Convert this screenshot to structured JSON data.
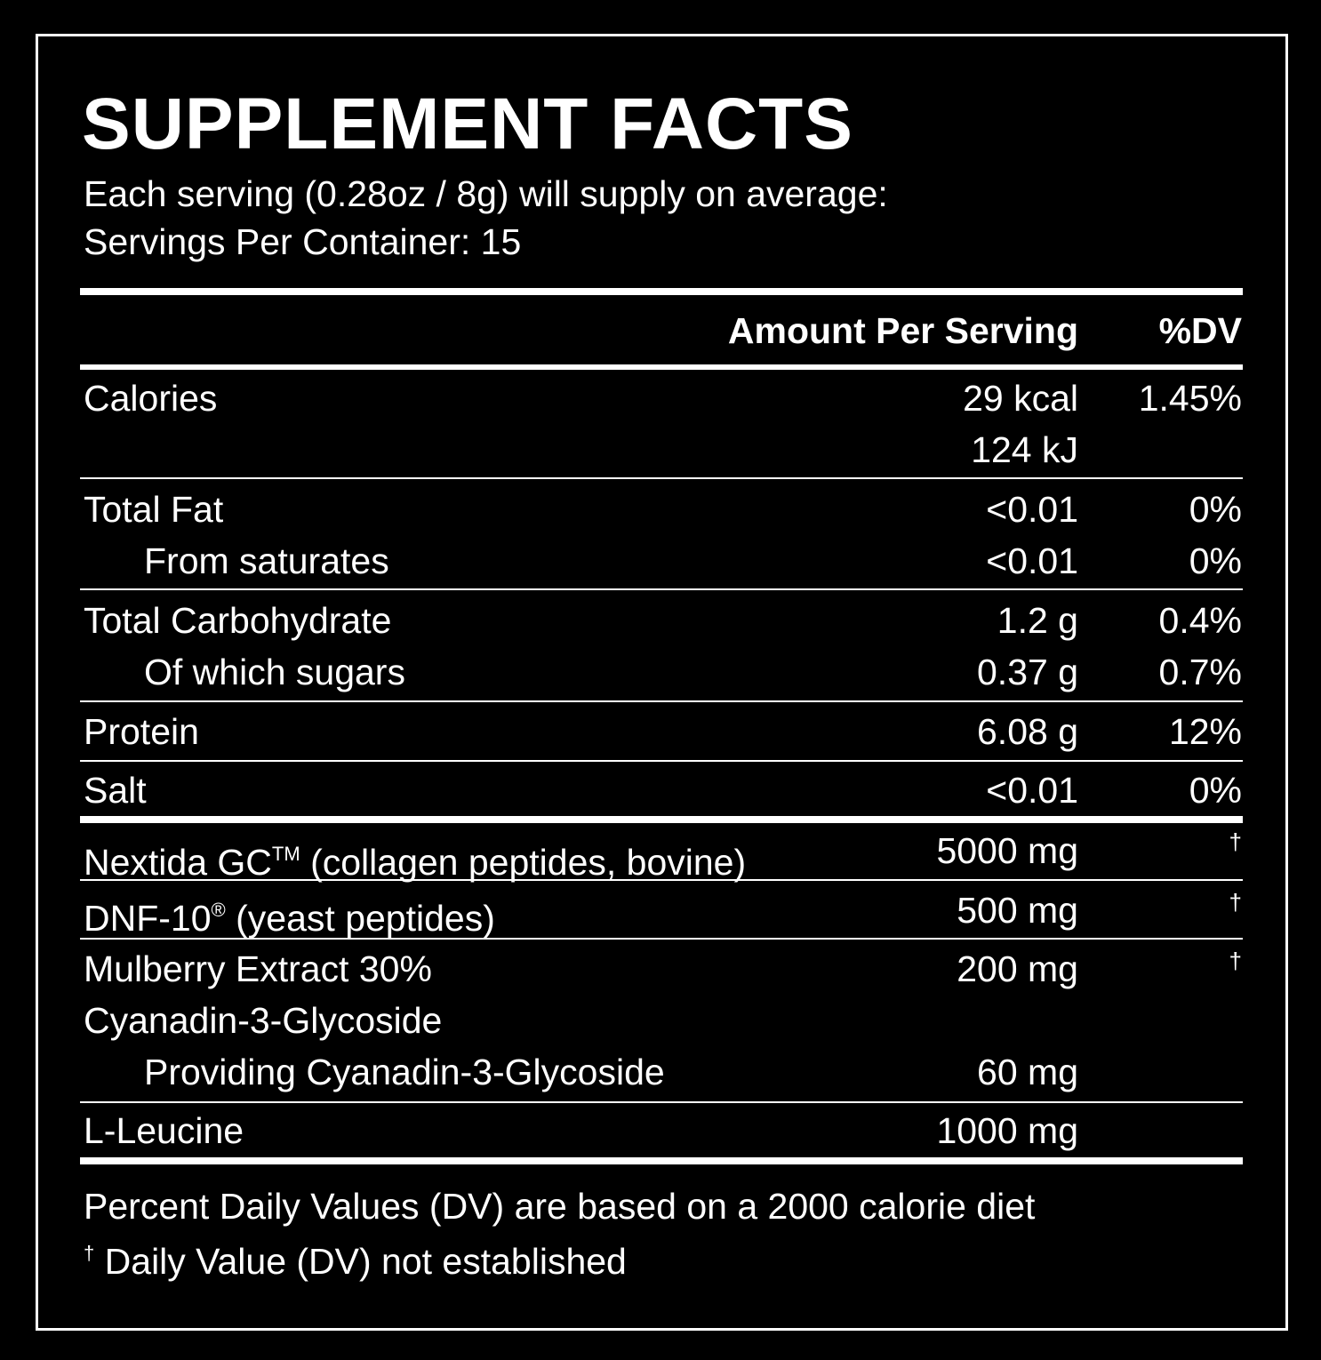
{
  "header": {
    "title": "SUPPLEMENT FACTS",
    "serving": "Each serving (0.28oz / 8g) will supply on average:",
    "servings_per_container": "Servings Per Container: 15"
  },
  "table": {
    "columns": [
      "Amount Per Serving",
      "%DV"
    ],
    "rows": [
      {
        "label": "Calories",
        "amount": "29 kcal",
        "dv": "1.45%"
      },
      {
        "amount": "124 kJ"
      },
      {
        "label": "Total Fat",
        "amount": "<0.01",
        "dv": "0%"
      },
      {
        "label": "From saturates",
        "amount": "<0.01",
        "dv": "0%"
      },
      {
        "label": "Total Carbohydrate",
        "amount": "1.2 g",
        "dv": "0.4%"
      },
      {
        "label": "Of which sugars",
        "amount": "0.37 g",
        "dv": "0.7%"
      },
      {
        "label": "Protein",
        "amount": "6.08 g",
        "dv": "12%"
      },
      {
        "label": "Salt",
        "amount": "<0.01",
        "dv": "0%"
      },
      {
        "label": "Nextida GC",
        "mark": "TM",
        "note": "(collagen peptides, bovine)",
        "amount": "5000 mg",
        "dv": "†"
      },
      {
        "label": "DNF-10",
        "mark": "®",
        "note": "(yeast peptides)",
        "amount": "500 mg",
        "dv": "†"
      },
      {
        "label": "Mulberry Extract 30%",
        "amount": "200 mg",
        "dv": "†"
      },
      {
        "label": "Cyanadin-3-Glycoside"
      },
      {
        "label": "Providing Cyanadin-3-Glycoside",
        "amount": "60 mg"
      },
      {
        "label": "L-Leucine",
        "amount": "1000 mg"
      }
    ]
  },
  "footnotes": [
    {
      "text": "Percent Daily Values (DV) are based on a 2000 calorie diet"
    },
    {
      "mark": "†",
      "text": "Daily Value (DV) not established"
    }
  ]
}
